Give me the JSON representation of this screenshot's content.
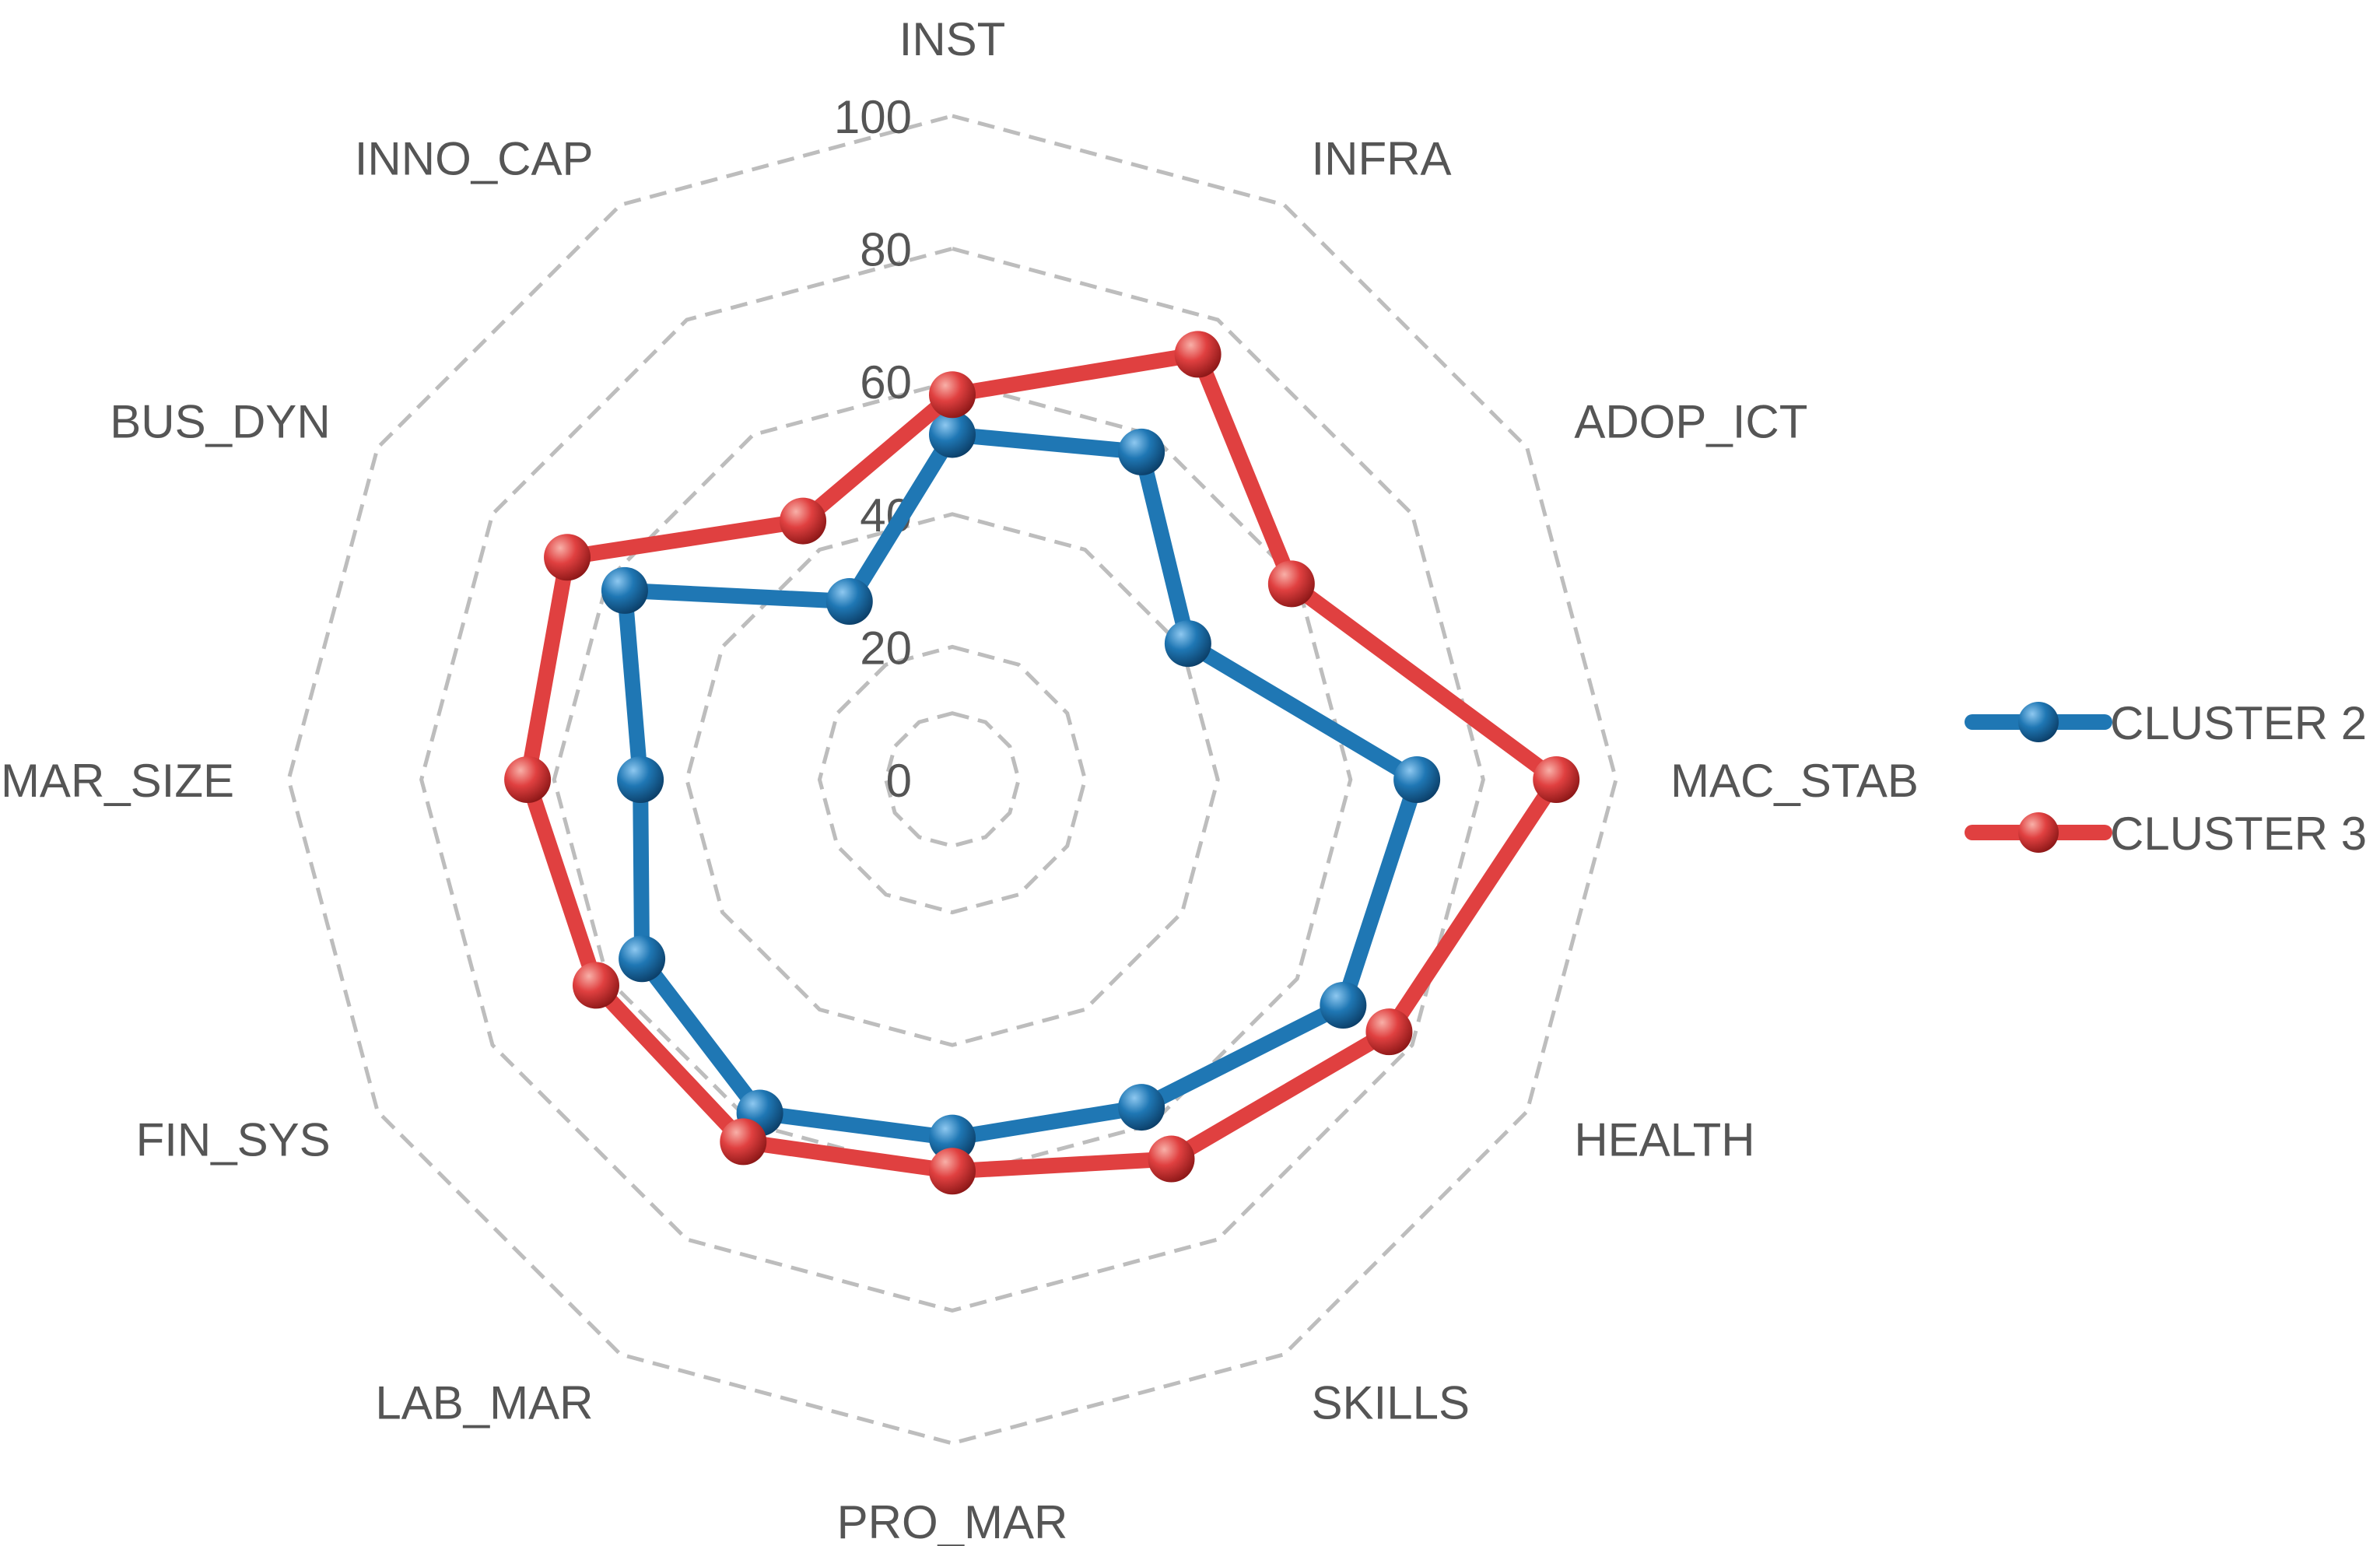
{
  "chart_data": {
    "type": "radar",
    "categories": [
      "INST",
      "INFRA",
      "ADOP_ICT",
      "MAC_STAB",
      "HEALTH",
      "SKILLS",
      "PRO_MAR",
      "LAB_MAR",
      "FIN_SYS",
      "MAR_SIZE",
      "BUS_DYN",
      "INNO_CAP"
    ],
    "rmin": 0,
    "rmax": 100,
    "ticks": [
      0,
      20,
      40,
      60,
      80,
      100
    ],
    "tick_labels": [
      "0",
      "20",
      "40",
      "60",
      "80",
      "100"
    ],
    "grid": true,
    "legend_position": "right",
    "series": [
      {
        "name": "CLUSTER 2",
        "color": "#1f77b4",
        "values": [
          52,
          57,
          41,
          70,
          68,
          57,
          54,
          58,
          54,
          47,
          57,
          31
        ]
      },
      {
        "name": "CLUSTER 3",
        "color": "#e04040",
        "values": [
          58,
          74,
          59,
          91,
          76,
          66,
          59,
          63,
          62,
          64,
          67,
          45
        ]
      }
    ],
    "grid_color": "#bdbdbd"
  }
}
